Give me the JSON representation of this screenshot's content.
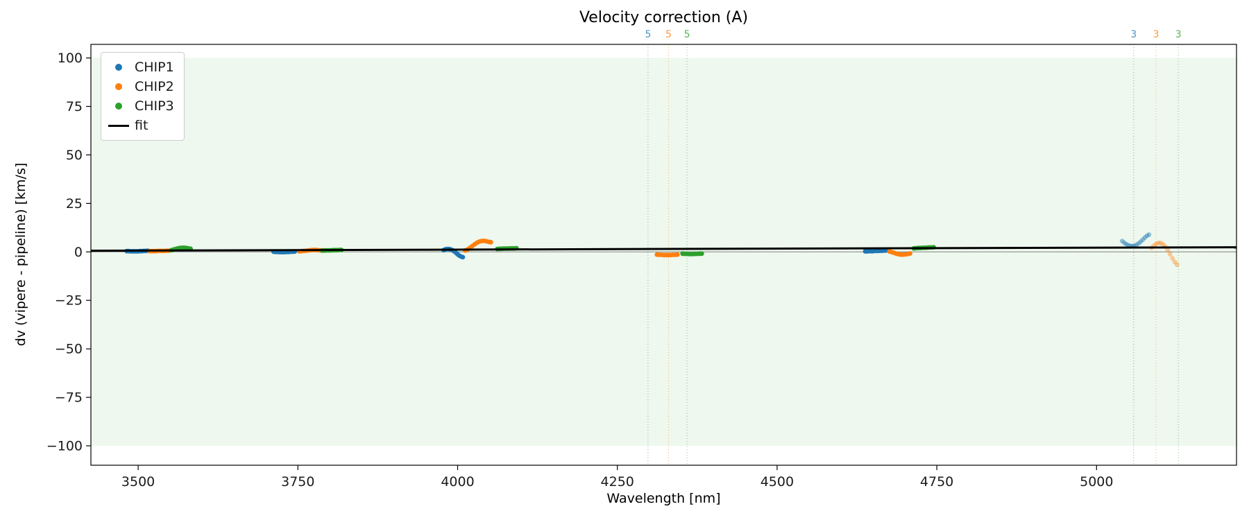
{
  "figure": {
    "title": "Velocity correction (A)",
    "xlabel": "Wavelength [nm]",
    "ylabel": "dv (vipere - pipeline) [km/s]"
  },
  "legend": {
    "entries": [
      {
        "label": "CHIP1",
        "color": "#1f77b4",
        "marker": "dot"
      },
      {
        "label": "CHIP2",
        "color": "#ff7f0e",
        "marker": "dot"
      },
      {
        "label": "CHIP3",
        "color": "#2ca02c",
        "marker": "dot"
      },
      {
        "label": "fit",
        "color": "#000000",
        "marker": "line"
      }
    ]
  },
  "chart_data": {
    "type": "scatter",
    "title": "Velocity correction (A)",
    "xlabel": "Wavelength [nm]",
    "ylabel": "dv (vipere - pipeline) [km/s]",
    "xlim": [
      3426,
      5219
    ],
    "ylim": [
      -110,
      107
    ],
    "x_ticks": [
      3500,
      3750,
      4000,
      4250,
      4500,
      4750,
      5000
    ],
    "y_ticks": [
      100,
      75,
      50,
      25,
      0,
      -25,
      -50,
      -75,
      -100
    ],
    "grid": false,
    "legend_position": "upper left",
    "shaded_band": {
      "y_min": -100,
      "y_max": 100,
      "color": "#2ca02c",
      "opacity": 0.08
    },
    "zero_line": {
      "y": 0,
      "color": "#808080"
    },
    "fit_line": {
      "x": [
        3426,
        5219
      ],
      "y": [
        0.6,
        2.4
      ],
      "color": "#000000",
      "width": 3
    },
    "vlines": [
      {
        "x": 4298,
        "color": "#1f77b4",
        "label": "5"
      },
      {
        "x": 4330,
        "color": "#ff7f0e",
        "label": "5"
      },
      {
        "x": 4359,
        "color": "#2ca02c",
        "label": "5"
      },
      {
        "x": 5058,
        "color": "#1f77b4",
        "label": "3"
      },
      {
        "x": 5093,
        "color": "#ff7f0e",
        "label": "3"
      },
      {
        "x": 5128,
        "color": "#2ca02c",
        "label": "3"
      }
    ],
    "series": [
      {
        "name": "CHIP1",
        "color": "#1f77b4",
        "clusters": [
          {
            "x_start": 3482,
            "x_end": 3515,
            "y": [
              0.4,
              0.4,
              0.3,
              0.3,
              0.3,
              0.3,
              0.3,
              0.4,
              0.4,
              0.5,
              0.5,
              0.6
            ]
          },
          {
            "x_start": 3712,
            "x_end": 3745,
            "y": [
              0.1,
              0.0,
              0.0,
              -0.1,
              -0.1,
              -0.1,
              -0.1,
              0.0,
              0.0,
              0.1,
              0.1,
              0.2
            ]
          },
          {
            "x_start": 3978,
            "x_end": 4008,
            "y": [
              0.9,
              1.3,
              1.5,
              1.5,
              1.3,
              0.9,
              0.3,
              -0.4,
              -1.2,
              -1.9,
              -2.4,
              -2.7
            ]
          },
          {
            "x_start": 4638,
            "x_end": 4670,
            "y": [
              0.3,
              0.3,
              0.4,
              0.4,
              0.4,
              0.5,
              0.5,
              0.5,
              0.6,
              0.6,
              0.7,
              0.7
            ]
          },
          {
            "x_start": 5040,
            "x_end": 5082,
            "alpha": 0.45,
            "y": [
              5.6,
              4.7,
              4.0,
              3.4,
              3.1,
              3.0,
              3.2,
              3.7,
              4.4,
              5.3,
              6.3,
              7.4,
              8.3,
              8.9
            ]
          }
        ]
      },
      {
        "name": "CHIP2",
        "color": "#ff7f0e",
        "clusters": [
          {
            "x_start": 3518,
            "x_end": 3548,
            "y": [
              0.4,
              0.4,
              0.4,
              0.4,
              0.5,
              0.5,
              0.5,
              0.5,
              0.6,
              0.6
            ]
          },
          {
            "x_start": 3752,
            "x_end": 3785,
            "y": [
              0.3,
              0.4,
              0.5,
              0.6,
              0.8,
              0.9,
              1.0,
              1.0,
              0.9,
              0.8
            ]
          },
          {
            "x_start": 4012,
            "x_end": 4052,
            "y": [
              0.7,
              1.3,
              2.1,
              3.0,
              3.9,
              4.7,
              5.3,
              5.6,
              5.7,
              5.5,
              5.2,
              5.0
            ]
          },
          {
            "x_start": 4312,
            "x_end": 4344,
            "y": [
              -1.4,
              -1.5,
              -1.5,
              -1.6,
              -1.6,
              -1.6,
              -1.6,
              -1.5,
              -1.5,
              -1.4
            ]
          },
          {
            "x_start": 4676,
            "x_end": 4708,
            "y": [
              0.2,
              -0.1,
              -0.5,
              -0.9,
              -1.2,
              -1.4,
              -1.4,
              -1.3,
              -1.1,
              -0.8
            ]
          },
          {
            "x_start": 5086,
            "x_end": 5126,
            "alpha": 0.4,
            "y": [
              2.1,
              3.2,
              4.1,
              4.6,
              4.5,
              3.8,
              2.6,
              0.9,
              -1.2,
              -3.3,
              -5.2,
              -6.6
            ]
          }
        ]
      },
      {
        "name": "CHIP3",
        "color": "#2ca02c",
        "clusters": [
          {
            "x_start": 3552,
            "x_end": 3582,
            "y": [
              0.9,
              1.2,
              1.5,
              1.8,
              2.0,
              2.1,
              2.1,
              2.0,
              1.8,
              1.6
            ]
          },
          {
            "x_start": 3788,
            "x_end": 3818,
            "y": [
              0.7,
              0.7,
              0.8,
              0.8,
              0.8,
              0.9,
              0.9,
              0.9,
              1.0,
              1.0
            ]
          },
          {
            "x_start": 4062,
            "x_end": 4092,
            "y": [
              1.5,
              1.6,
              1.6,
              1.7,
              1.7,
              1.7,
              1.8,
              1.8,
              1.8,
              1.9
            ]
          },
          {
            "x_start": 4352,
            "x_end": 4382,
            "y": [
              -0.9,
              -1.0,
              -1.0,
              -1.1,
              -1.1,
              -1.1,
              -1.0,
              -1.0,
              -0.9,
              -0.9
            ]
          },
          {
            "x_start": 4714,
            "x_end": 4745,
            "y": [
              1.8,
              1.9,
              2.0,
              2.0,
              2.1,
              2.1,
              2.2,
              2.3,
              2.3,
              2.4
            ]
          }
        ]
      }
    ]
  }
}
